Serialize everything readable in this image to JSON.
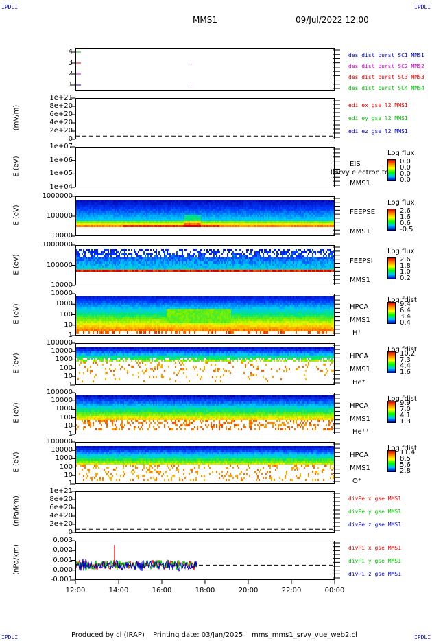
{
  "corners": {
    "tl": "IPDLI",
    "tr": "IPDLI",
    "bl": "IPDLI",
    "br": "IPDLI"
  },
  "header": {
    "spacecraft": "MMS1",
    "date": "09/Jul/2022 12:00"
  },
  "footer": {
    "produced": "Produced by cl (IRAP)",
    "printing": "Printing date: 03/Jan/2025",
    "file": "mms_mms1_srvy_vue_web2.cl"
  },
  "colors": {
    "red": "#e00000",
    "magenta": "#d000d0",
    "green": "#00c000",
    "blue": "#0000c0"
  },
  "chart_data": {
    "type": "heatmap",
    "x_ticks": [
      "12:00",
      "14:00",
      "16:00",
      "18:00",
      "20:00",
      "22:00",
      "00:00"
    ],
    "panels": [
      {
        "id": "burst",
        "ylabel": "",
        "yticks": [
          "4",
          "3",
          "2",
          "1"
        ],
        "legend": [
          {
            "text": "des dist burst SC1 MMS1",
            "color": "#0000c0"
          },
          {
            "text": "des dist burst SC2 MMS2",
            "color": "#d000d0"
          },
          {
            "text": "des dist burst SC3 MMS3",
            "color": "#e00000"
          },
          {
            "text": "des dist burst SC4 MMS4",
            "color": "#00c000"
          }
        ]
      },
      {
        "id": "edi",
        "ylabel": "(mV/m)",
        "yticks": [
          "1e+21",
          "8e+20",
          "6e+20",
          "4e+20",
          "2e+20",
          "0"
        ],
        "legend": [
          {
            "text": "edi ex gse l2 MMS1",
            "color": "#e00000"
          },
          {
            "text": "edi ey gse l2 MMS1",
            "color": "#00c000"
          },
          {
            "text": "edi ez gse l2 MMS1",
            "color": "#0000c0"
          }
        ]
      },
      {
        "id": "eis",
        "ylabel": "E (eV)",
        "yticks": [
          "1e+07",
          "1e+06",
          "1e+05",
          "1e+04"
        ],
        "inst": [
          "EIS",
          "MMS1"
        ],
        "overlay": "l(srvy electron to",
        "cbar_title": "Log flux",
        "cbar_values": [
          "0.0",
          "0.0",
          "0.0",
          "0.0"
        ]
      },
      {
        "id": "feepse",
        "ylabel": "E (eV)",
        "yticks": [
          "1000000",
          "100000",
          "10000"
        ],
        "inst": [
          "FEEPSE",
          "MMS1"
        ],
        "cbar_title": "Log flux",
        "cbar_values": [
          "2.6",
          "1.6",
          "0.6",
          "-0.5"
        ]
      },
      {
        "id": "feepsi",
        "ylabel": "E (eV)",
        "yticks": [
          "1000000",
          "100000",
          "10000"
        ],
        "inst": [
          "FEEPSI",
          "MMS1"
        ],
        "cbar_title": "Log flux",
        "cbar_values": [
          "2.6",
          "1.8",
          "1.0",
          "0.2"
        ]
      },
      {
        "id": "hpca_h",
        "ylabel": "E (eV)",
        "yticks": [
          "10000",
          "1000",
          "100",
          "10",
          "1"
        ],
        "inst": [
          "HPCA",
          "MMS1",
          "H⁺"
        ],
        "cbar_title": "Log fdist",
        "cbar_values": [
          "9.4",
          "6.4",
          "3.4",
          "0.4"
        ]
      },
      {
        "id": "hpca_he",
        "ylabel": "E (eV)",
        "yticks": [
          "100000",
          "10000",
          "1000",
          "100",
          "10",
          "1"
        ],
        "inst": [
          "HPCA",
          "MMS1",
          "He⁺"
        ],
        "cbar_title": "Log fdist",
        "cbar_values": [
          "10.2",
          "7.3",
          "4.4",
          "1.6"
        ]
      },
      {
        "id": "hpca_hepp",
        "ylabel": "E (eV)",
        "yticks": [
          "100000",
          "10000",
          "1000",
          "100",
          "10",
          "1"
        ],
        "inst": [
          "HPCA",
          "MMS1",
          "He⁺⁺"
        ],
        "cbar_title": "Log fdist",
        "cbar_values": [
          "9.9",
          "7.0",
          "4.1",
          "1.3"
        ]
      },
      {
        "id": "hpca_o",
        "ylabel": "E (eV)",
        "yticks": [
          "100000",
          "10000",
          "1000",
          "100",
          "10",
          "1"
        ],
        "inst": [
          "HPCA",
          "MMS1",
          "O⁺"
        ],
        "cbar_title": "Log fdist",
        "cbar_values": [
          "11.4",
          "8.5",
          "5.6",
          "2.8"
        ]
      },
      {
        "id": "divpe",
        "ylabel": "(nPa/km)",
        "yticks": [
          "1e+21",
          "8e+20",
          "6e+20",
          "4e+20",
          "2e+20",
          "0"
        ],
        "legend": [
          {
            "text": "divPe x gse MMS1",
            "color": "#e00000"
          },
          {
            "text": "divPe y gse MMS1",
            "color": "#00c000"
          },
          {
            "text": "divPe z gse MMS1",
            "color": "#0000c0"
          }
        ]
      },
      {
        "id": "divpi",
        "ylabel": "(nPa/km)",
        "yticks": [
          "0.003",
          "0.002",
          "0.001",
          "0.000",
          "-0.001"
        ],
        "legend": [
          {
            "text": "divPi x gse MMS1",
            "color": "#e00000"
          },
          {
            "text": "divPi y gse MMS1",
            "color": "#00c000"
          },
          {
            "text": "divPi z gse MMS1",
            "color": "#0000c0"
          }
        ]
      }
    ]
  }
}
